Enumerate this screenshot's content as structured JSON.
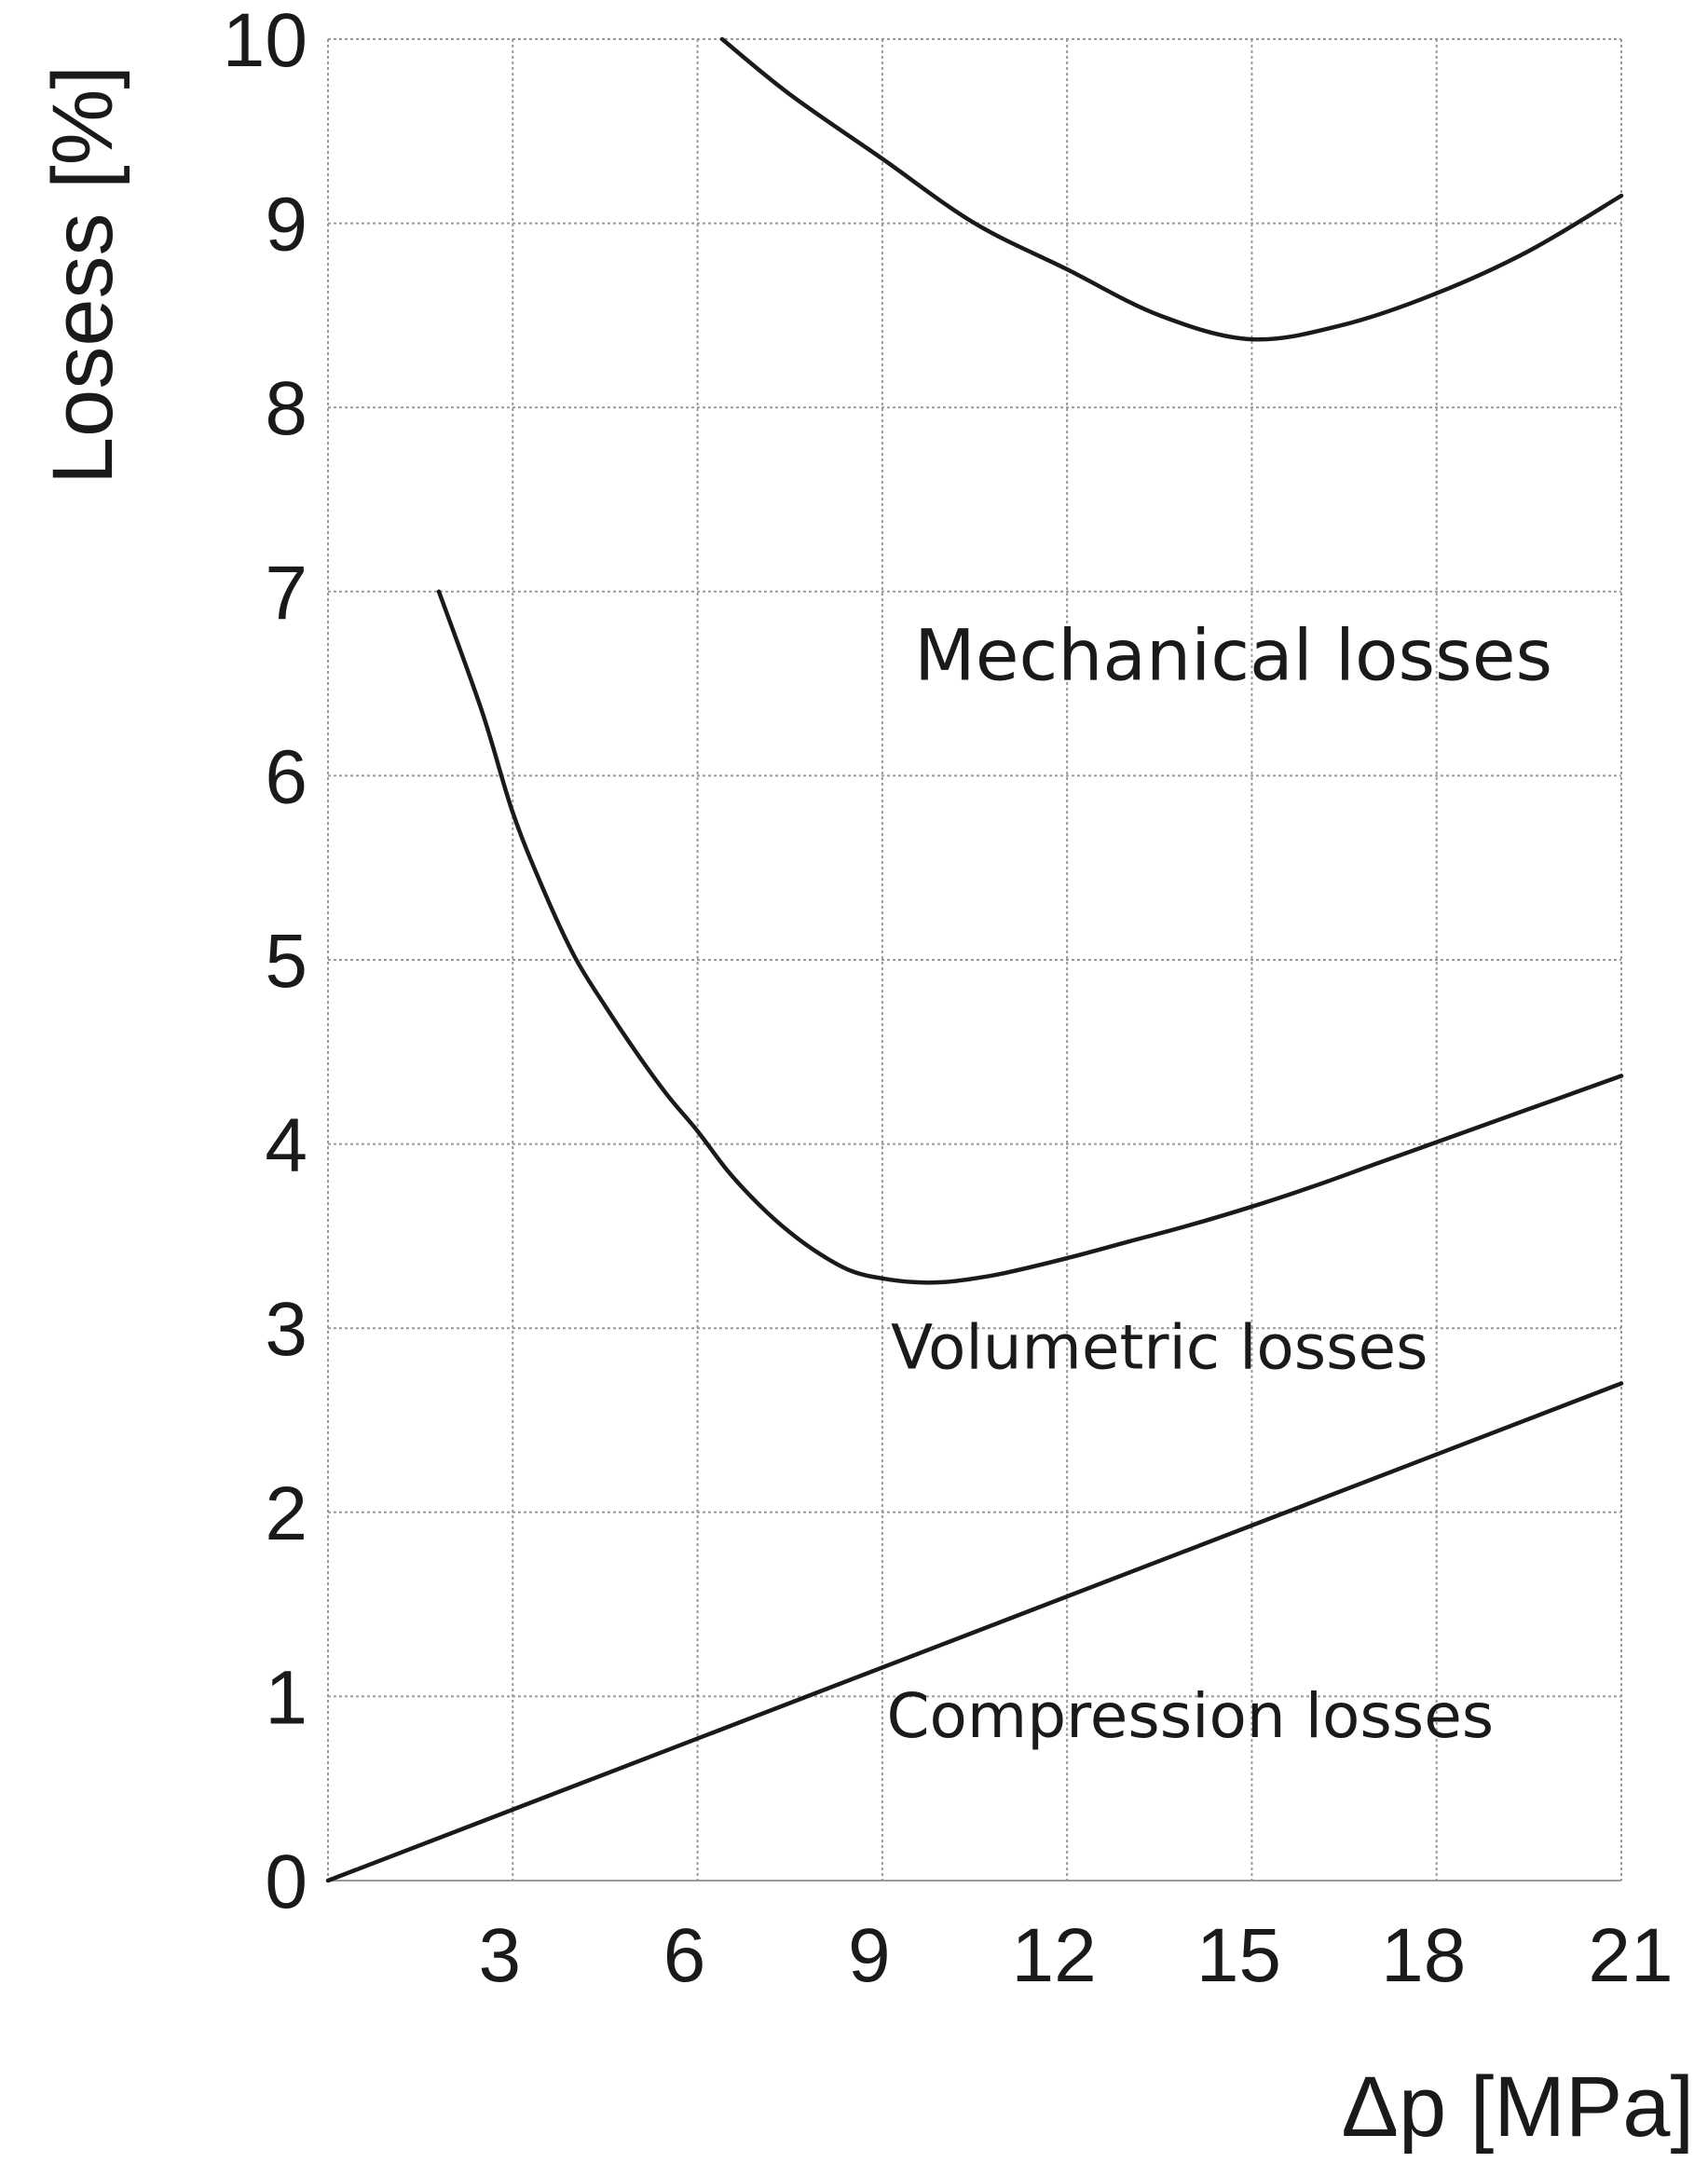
{
  "chart_data": {
    "type": "line",
    "title": "",
    "xlabel": "Δp [MPa]",
    "ylabel": "Losess  [%]",
    "xlim": [
      0,
      21
    ],
    "ylim": [
      0,
      10
    ],
    "x_ticks": [
      3,
      6,
      9,
      12,
      15,
      18,
      21
    ],
    "x_tick_labels": [
      "3",
      "6",
      "9",
      "12",
      "15",
      "18",
      "21"
    ],
    "y_ticks": [
      0,
      1,
      2,
      3,
      4,
      5,
      6,
      7,
      8,
      9,
      10
    ],
    "y_tick_labels": [
      "0",
      "1",
      "2",
      "3",
      "4",
      "5",
      "6",
      "7",
      "8",
      "9",
      "10"
    ],
    "grid": true,
    "series": [
      {
        "name": "Mechanical losses",
        "x": [
          6.4,
          7.5,
          9,
          10.5,
          12,
          13.5,
          15,
          16.5,
          18,
          19.5,
          21
        ],
        "y": [
          10.0,
          9.7,
          9.35,
          9.0,
          8.75,
          8.5,
          8.37,
          8.45,
          8.62,
          8.85,
          9.15
        ]
      },
      {
        "name": "Volumetric losses",
        "x": [
          1.8,
          2.5,
          3,
          3.5,
          4,
          4.5,
          5,
          5.5,
          6,
          6.5,
          7,
          7.5,
          8,
          8.5,
          9,
          9.5,
          10,
          10.5,
          11,
          12,
          13,
          14,
          15,
          16,
          17,
          18,
          19,
          20,
          21
        ],
        "y": [
          7.0,
          6.35,
          5.8,
          5.38,
          5.02,
          4.75,
          4.5,
          4.27,
          4.07,
          3.85,
          3.67,
          3.52,
          3.4,
          3.31,
          3.27,
          3.25,
          3.25,
          3.27,
          3.3,
          3.38,
          3.47,
          3.56,
          3.66,
          3.77,
          3.89,
          4.01,
          4.13,
          4.25,
          4.37
        ]
      },
      {
        "name": "Compression losses",
        "x": [
          0,
          21
        ],
        "y": [
          0,
          2.7
        ]
      }
    ],
    "annotations": [
      {
        "text": "Mechanical losses",
        "x": 14.7,
        "y": 6.52,
        "size": "large"
      },
      {
        "text": "Volumetric losses",
        "x": 13.5,
        "y": 2.78,
        "size": "medium"
      },
      {
        "text": "Compression losses",
        "x": 14.0,
        "y": 0.78,
        "size": "medium"
      }
    ]
  }
}
